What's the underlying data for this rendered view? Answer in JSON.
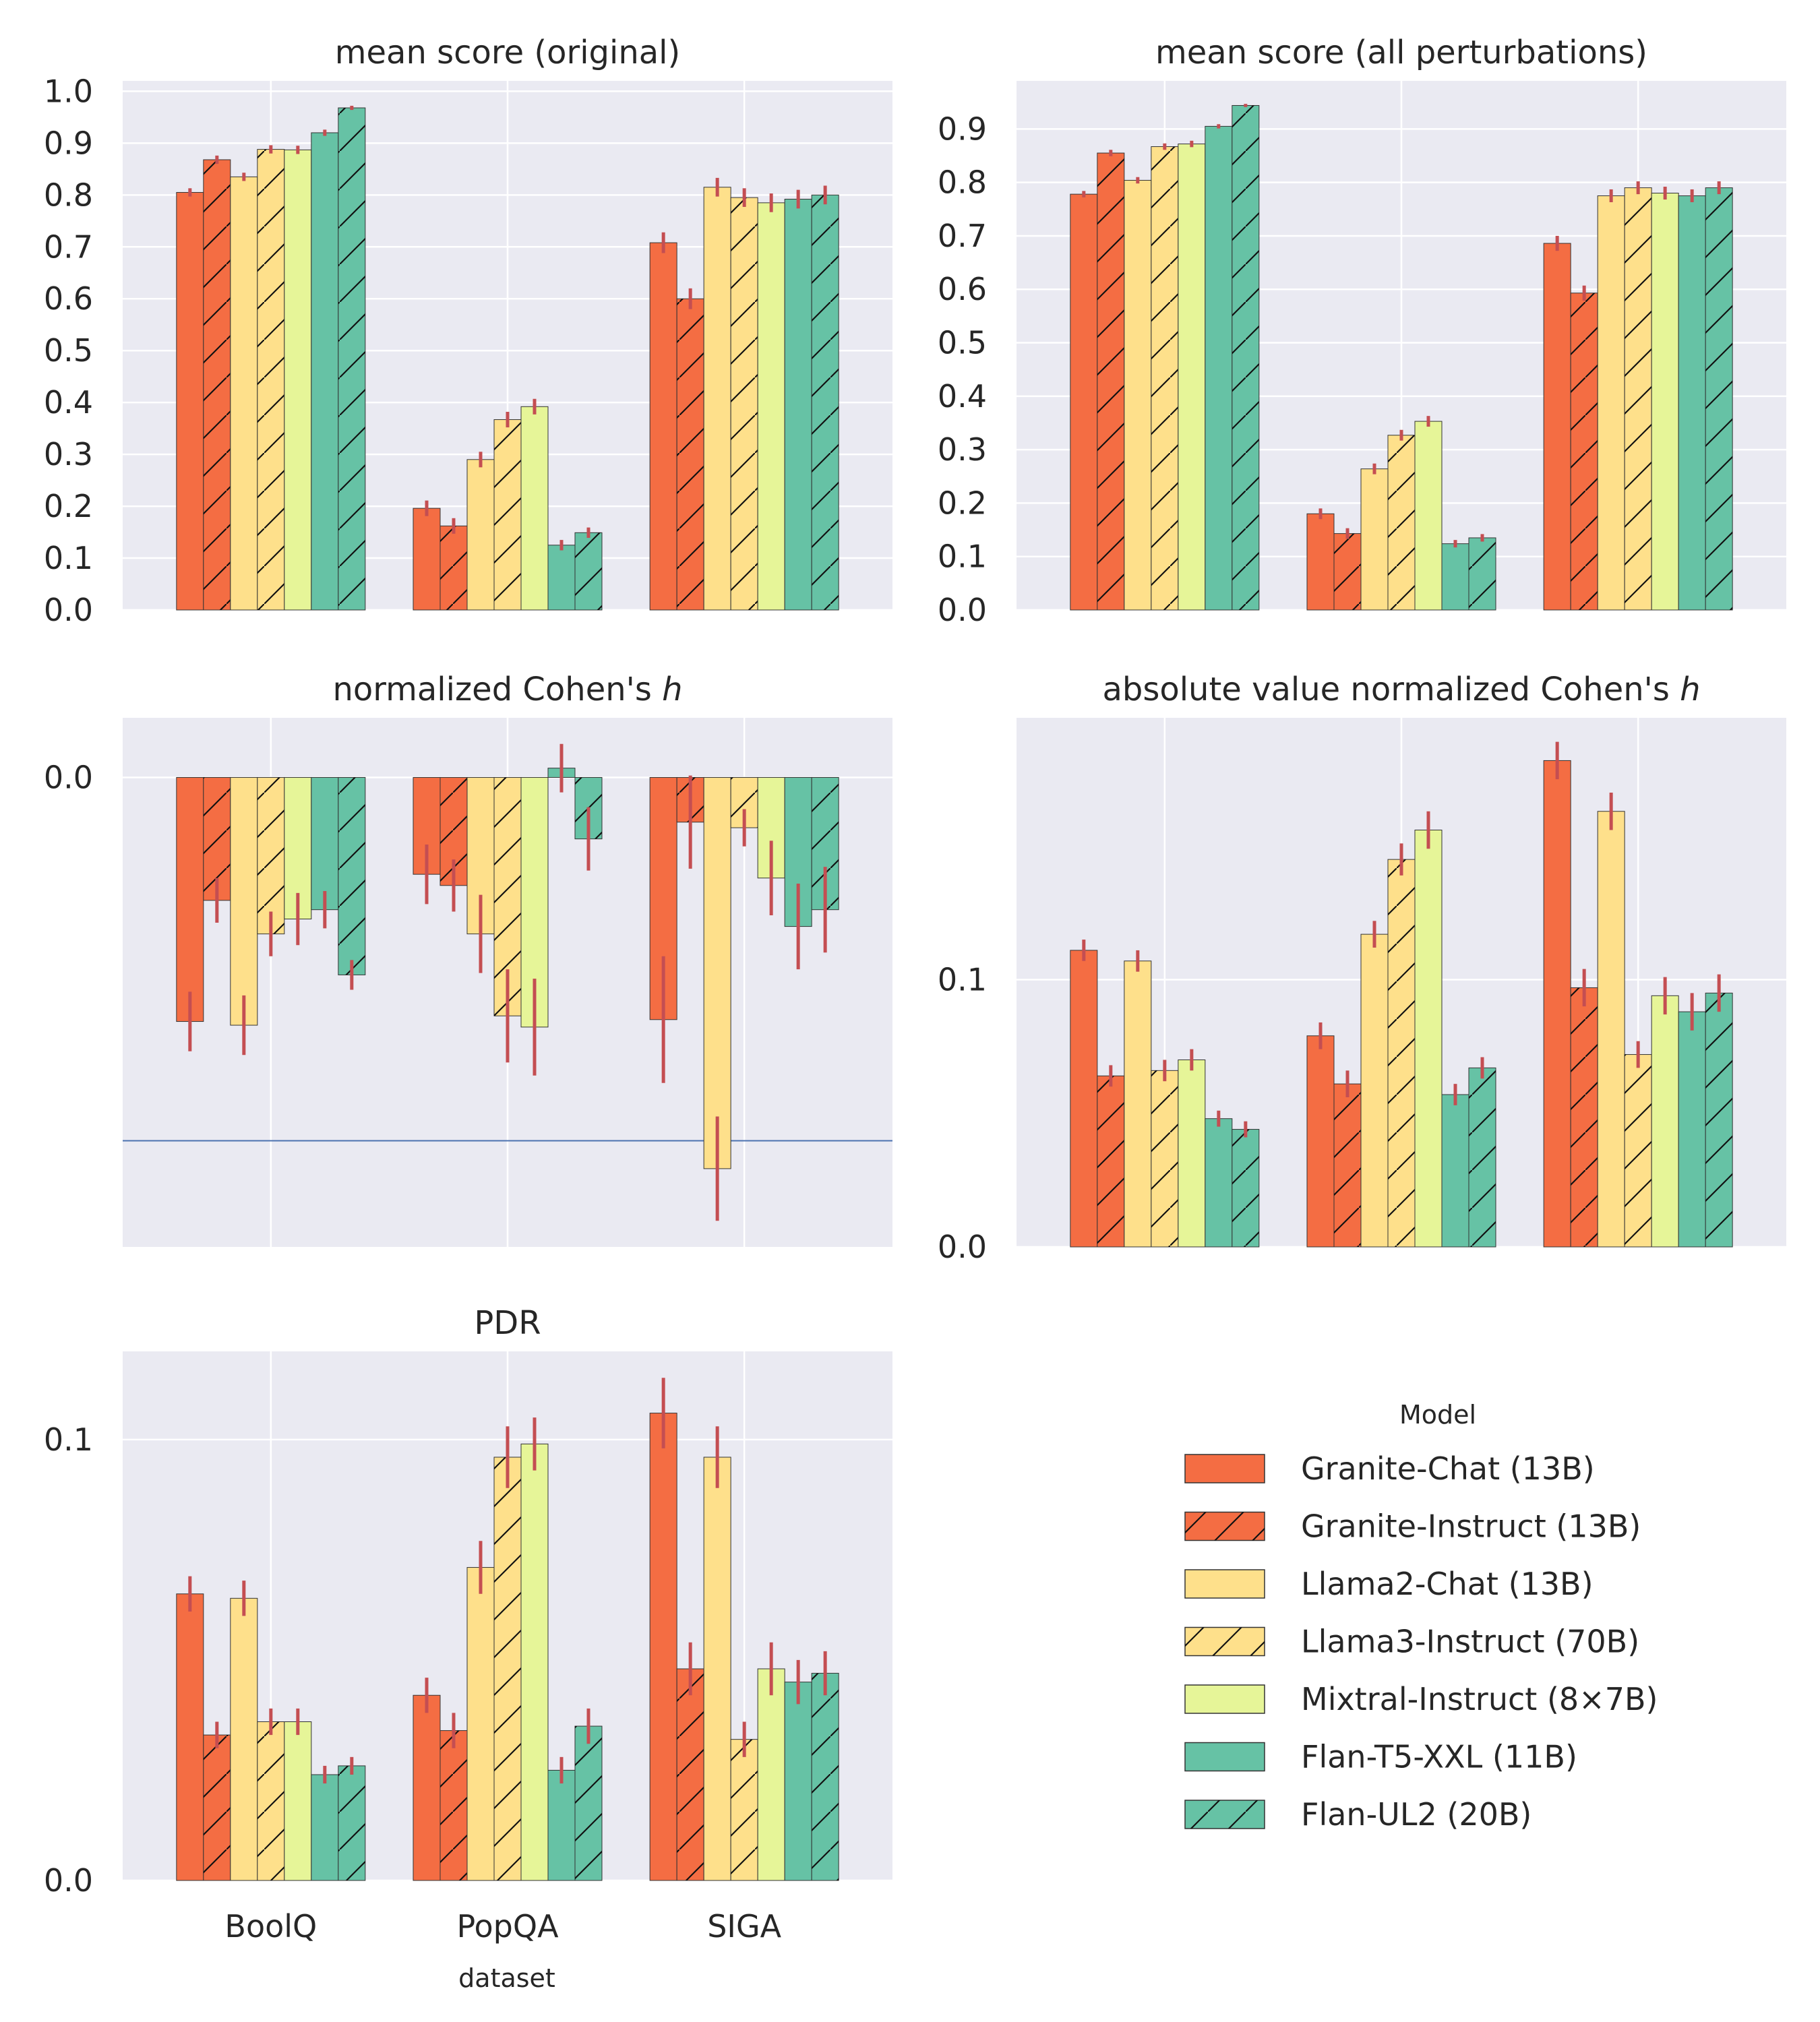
{
  "figure": {
    "xlabel": "dataset",
    "categories": [
      "BoolQ",
      "PopQA",
      "SIGA"
    ]
  },
  "legend": {
    "title": "Model",
    "entries": [
      {
        "label": "Granite-Chat (13B)",
        "color": "#f46d43",
        "hatch": false
      },
      {
        "label": "Granite-Instruct (13B)",
        "color": "#f46d43",
        "hatch": true
      },
      {
        "label": "Llama2-Chat (13B)",
        "color": "#fee08b",
        "hatch": false
      },
      {
        "label": "Llama3-Instruct (70B)",
        "color": "#fee08b",
        "hatch": true
      },
      {
        "label": "Mixtral-Instruct (8×7B)",
        "color": "#e6f598",
        "hatch": false
      },
      {
        "label": "Flan-T5-XXL (11B)",
        "color": "#66c2a5",
        "hatch": false
      },
      {
        "label": "Flan-UL2 (20B)",
        "color": "#66c2a5",
        "hatch": true
      }
    ]
  },
  "colors": {
    "panel_bg": "#eaeaf2",
    "grid": "#ffffff",
    "error_bar": "#c44e52",
    "ref_line": "#4c72b0",
    "bar_edge": "#333333"
  },
  "chart_data": [
    {
      "type": "bar",
      "title": "mean score (original)",
      "categories": [
        "BoolQ",
        "PopQA",
        "SIGA"
      ],
      "ylim": [
        0,
        1.02
      ],
      "yticks": [
        0.0,
        0.1,
        0.2,
        0.3,
        0.4,
        0.5,
        0.6,
        0.7,
        0.8,
        0.9,
        1.0
      ],
      "ytick_labels": [
        "0.0",
        "0.1",
        "0.2",
        "0.3",
        "0.4",
        "0.5",
        "0.6",
        "0.7",
        "0.8",
        "0.9",
        "1.0"
      ],
      "series": [
        {
          "name": "Granite-Chat (13B)",
          "values": [
            0.805,
            0.196,
            0.708
          ],
          "errors": [
            0.008,
            0.015,
            0.02
          ]
        },
        {
          "name": "Granite-Instruct (13B)",
          "values": [
            0.868,
            0.162,
            0.6
          ],
          "errors": [
            0.008,
            0.015,
            0.02
          ]
        },
        {
          "name": "Llama2-Chat (13B)",
          "values": [
            0.835,
            0.29,
            0.815
          ],
          "errors": [
            0.008,
            0.015,
            0.018
          ]
        },
        {
          "name": "Llama3-Instruct (70B)",
          "values": [
            0.888,
            0.367,
            0.795
          ],
          "errors": [
            0.008,
            0.015,
            0.018
          ]
        },
        {
          "name": "Mixtral-Instruct (8×7B)",
          "values": [
            0.887,
            0.392,
            0.785
          ],
          "errors": [
            0.008,
            0.015,
            0.018
          ]
        },
        {
          "name": "Flan-T5-XXL (11B)",
          "values": [
            0.92,
            0.125,
            0.792
          ],
          "errors": [
            0.006,
            0.01,
            0.018
          ]
        },
        {
          "name": "Flan-UL2 (20B)",
          "values": [
            0.968,
            0.149,
            0.8
          ],
          "errors": [
            0.004,
            0.01,
            0.018
          ]
        }
      ]
    },
    {
      "type": "bar",
      "title": "mean score (all perturbations)",
      "categories": [
        "BoolQ",
        "PopQA",
        "SIGA"
      ],
      "ylim": [
        0,
        0.99
      ],
      "yticks": [
        0.0,
        0.1,
        0.2,
        0.3,
        0.4,
        0.5,
        0.6,
        0.7,
        0.8,
        0.9
      ],
      "ytick_labels": [
        "0.0",
        "0.1",
        "0.2",
        "0.3",
        "0.4",
        "0.5",
        "0.6",
        "0.7",
        "0.8",
        "0.9"
      ],
      "series": [
        {
          "name": "Granite-Chat (13B)",
          "values": [
            0.778,
            0.18,
            0.686
          ],
          "errors": [
            0.006,
            0.01,
            0.014
          ]
        },
        {
          "name": "Granite-Instruct (13B)",
          "values": [
            0.855,
            0.143,
            0.593
          ],
          "errors": [
            0.006,
            0.01,
            0.014
          ]
        },
        {
          "name": "Llama2-Chat (13B)",
          "values": [
            0.804,
            0.264,
            0.775
          ],
          "errors": [
            0.006,
            0.01,
            0.012
          ]
        },
        {
          "name": "Llama3-Instruct (70B)",
          "values": [
            0.867,
            0.327,
            0.79
          ],
          "errors": [
            0.006,
            0.01,
            0.012
          ]
        },
        {
          "name": "Mixtral-Instruct (8×7B)",
          "values": [
            0.872,
            0.353,
            0.78
          ],
          "errors": [
            0.006,
            0.01,
            0.012
          ]
        },
        {
          "name": "Flan-T5-XXL (11B)",
          "values": [
            0.905,
            0.124,
            0.775
          ],
          "errors": [
            0.004,
            0.007,
            0.012
          ]
        },
        {
          "name": "Flan-UL2 (20B)",
          "values": [
            0.944,
            0.135,
            0.79
          ],
          "errors": [
            0.003,
            0.007,
            0.012
          ]
        }
      ]
    },
    {
      "type": "bar",
      "title": "normalized Cohen's ",
      "title_italic": "h",
      "categories": [
        "BoolQ",
        "PopQA",
        "SIGA"
      ],
      "ylim": [
        -0.252,
        0.032
      ],
      "yticks": [
        0.0
      ],
      "ytick_labels": [
        "0.0"
      ],
      "ref_line": -0.195,
      "series": [
        {
          "name": "Granite-Chat (13B)",
          "values": [
            -0.131,
            -0.052,
            -0.13
          ],
          "errors": [
            0.016,
            0.016,
            0.034
          ]
        },
        {
          "name": "Granite-Instruct (13B)",
          "values": [
            -0.066,
            -0.058,
            -0.024
          ],
          "errors": [
            0.012,
            0.014,
            0.025
          ]
        },
        {
          "name": "Llama2-Chat (13B)",
          "values": [
            -0.133,
            -0.084,
            -0.21
          ],
          "errors": [
            0.016,
            0.021,
            0.028
          ]
        },
        {
          "name": "Llama3-Instruct (70B)",
          "values": [
            -0.084,
            -0.128,
            -0.027
          ],
          "errors": [
            0.012,
            0.025,
            0.01
          ]
        },
        {
          "name": "Mixtral-Instruct (8×7B)",
          "values": [
            -0.076,
            -0.134,
            -0.054
          ],
          "errors": [
            0.014,
            0.026,
            0.02
          ]
        },
        {
          "name": "Flan-T5-XXL (11B)",
          "values": [
            -0.071,
            0.005,
            -0.08
          ],
          "errors": [
            0.01,
            0.013,
            0.023
          ]
        },
        {
          "name": "Flan-UL2 (20B)",
          "values": [
            -0.106,
            -0.033,
            -0.071
          ],
          "errors": [
            0.008,
            0.017,
            0.023
          ]
        }
      ]
    },
    {
      "type": "bar",
      "title": "absolute value normalized Cohen's ",
      "title_italic": "h",
      "categories": [
        "BoolQ",
        "PopQA",
        "SIGA"
      ],
      "ylim": [
        0,
        0.198
      ],
      "yticks": [
        0.0,
        0.1
      ],
      "ytick_labels": [
        "0.0",
        "0.1"
      ],
      "series": [
        {
          "name": "Granite-Chat (13B)",
          "values": [
            0.111,
            0.079,
            0.182
          ],
          "errors": [
            0.004,
            0.005,
            0.007
          ]
        },
        {
          "name": "Granite-Instruct (13B)",
          "values": [
            0.064,
            0.061,
            0.097
          ],
          "errors": [
            0.004,
            0.005,
            0.007
          ]
        },
        {
          "name": "Llama2-Chat (13B)",
          "values": [
            0.107,
            0.117,
            0.163
          ],
          "errors": [
            0.004,
            0.005,
            0.007
          ]
        },
        {
          "name": "Llama3-Instruct (70B)",
          "values": [
            0.066,
            0.145,
            0.072
          ],
          "errors": [
            0.004,
            0.006,
            0.005
          ]
        },
        {
          "name": "Mixtral-Instruct (8×7B)",
          "values": [
            0.07,
            0.156,
            0.094
          ],
          "errors": [
            0.004,
            0.007,
            0.007
          ]
        },
        {
          "name": "Flan-T5-XXL (11B)",
          "values": [
            0.048,
            0.057,
            0.088
          ],
          "errors": [
            0.003,
            0.004,
            0.007
          ]
        },
        {
          "name": "Flan-UL2 (20B)",
          "values": [
            0.044,
            0.067,
            0.095
          ],
          "errors": [
            0.003,
            0.004,
            0.007
          ]
        }
      ]
    },
    {
      "type": "bar",
      "title": "PDR",
      "categories": [
        "BoolQ",
        "PopQA",
        "SIGA"
      ],
      "ylim": [
        0,
        0.12
      ],
      "yticks": [
        0.0,
        0.1
      ],
      "ytick_labels": [
        "0.0",
        "0.1"
      ],
      "series": [
        {
          "name": "Granite-Chat (13B)",
          "values": [
            0.065,
            0.042,
            0.106
          ],
          "errors": [
            0.004,
            0.004,
            0.008
          ]
        },
        {
          "name": "Granite-Instruct (13B)",
          "values": [
            0.033,
            0.034,
            0.048
          ],
          "errors": [
            0.003,
            0.004,
            0.006
          ]
        },
        {
          "name": "Llama2-Chat (13B)",
          "values": [
            0.064,
            0.071,
            0.096
          ],
          "errors": [
            0.004,
            0.006,
            0.007
          ]
        },
        {
          "name": "Llama3-Instruct (70B)",
          "values": [
            0.036,
            0.096,
            0.032
          ],
          "errors": [
            0.003,
            0.007,
            0.004
          ]
        },
        {
          "name": "Mixtral-Instruct (8×7B)",
          "values": [
            0.036,
            0.099,
            0.048
          ],
          "errors": [
            0.003,
            0.006,
            0.006
          ]
        },
        {
          "name": "Flan-T5-XXL (11B)",
          "values": [
            0.024,
            0.025,
            0.045
          ],
          "errors": [
            0.002,
            0.003,
            0.005
          ]
        },
        {
          "name": "Flan-UL2 (20B)",
          "values": [
            0.026,
            0.035,
            0.047
          ],
          "errors": [
            0.002,
            0.004,
            0.005
          ]
        }
      ]
    }
  ]
}
